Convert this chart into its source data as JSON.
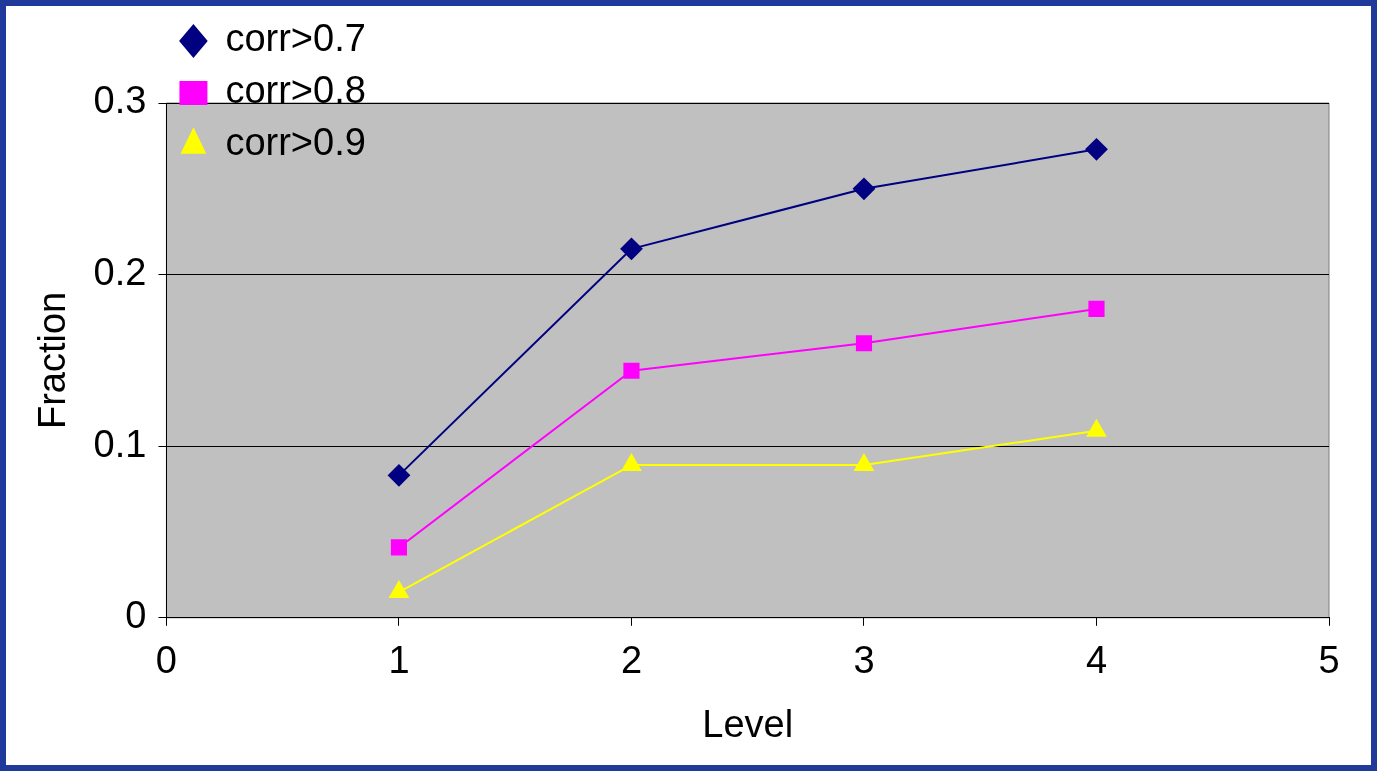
{
  "chart_data": {
    "type": "line",
    "xlabel": "Level",
    "ylabel": "Fraction",
    "xlim": [
      0,
      5
    ],
    "xticks": [
      0,
      1,
      2,
      3,
      4,
      5
    ],
    "ylim": [
      0,
      0.3
    ],
    "yticks": [
      0,
      0.1,
      0.2,
      0.3
    ],
    "grid": "y",
    "legend": "top left",
    "series": [
      {
        "name": "corr>0.7",
        "color": "#000080",
        "marker": "diamond",
        "x": [
          1,
          2,
          3,
          4
        ],
        "values": [
          0.083,
          0.215,
          0.25,
          0.273
        ]
      },
      {
        "name": "corr>0.8",
        "color": "#ff00ff",
        "marker": "square",
        "x": [
          1,
          2,
          3,
          4
        ],
        "values": [
          0.041,
          0.144,
          0.16,
          0.18
        ]
      },
      {
        "name": "corr>0.9",
        "color": "#ffff00",
        "marker": "triangle",
        "x": [
          1,
          2,
          3,
          4
        ],
        "values": [
          0.015,
          0.089,
          0.089,
          0.109
        ]
      }
    ]
  }
}
